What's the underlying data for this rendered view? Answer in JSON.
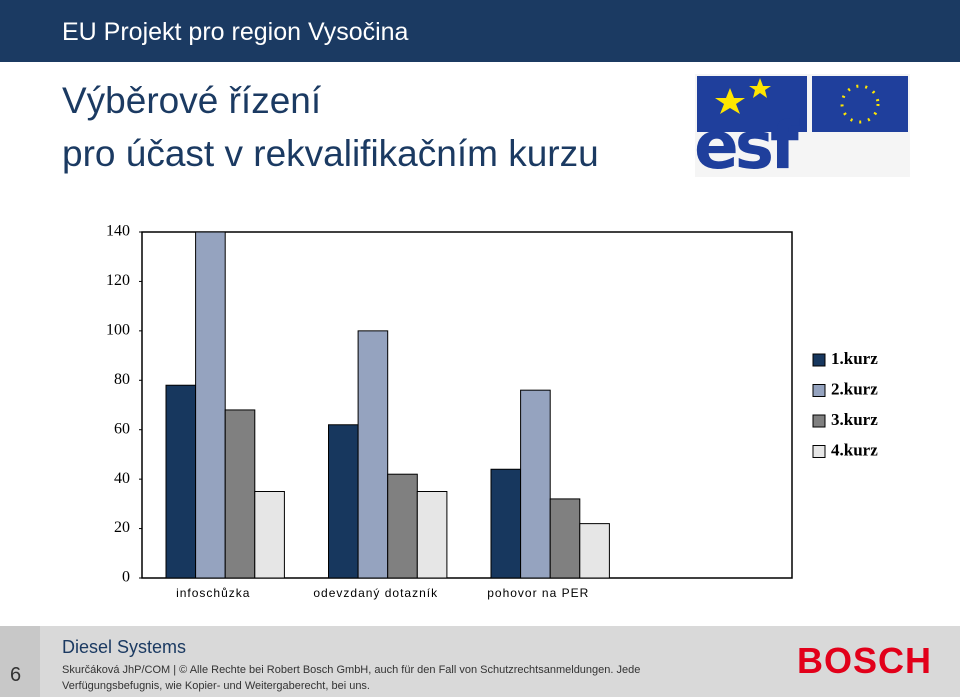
{
  "header": {
    "title": "EU Projekt pro region Vysočina",
    "heading": [
      "Výběrové řízení",
      "pro účast v rekvalifikačním kurzu"
    ],
    "logo_text": "esf"
  },
  "chart_data": {
    "type": "bar",
    "categories": [
      "infoschůzka",
      "odevzdaný dotazník",
      "pohovor na PER",
      null
    ],
    "series": [
      {
        "name": "1.kurz",
        "color": "#17375e",
        "values": [
          78,
          62,
          44,
          null
        ]
      },
      {
        "name": "2.kurz",
        "color": "#95a3bf",
        "values": [
          140,
          100,
          76,
          null
        ]
      },
      {
        "name": "3.kurz",
        "color": "#808080",
        "values": [
          68,
          42,
          32,
          null
        ]
      },
      {
        "name": "4.kurz",
        "color": "#e6e6e6",
        "values": [
          35,
          35,
          22,
          null
        ]
      }
    ],
    "ylim": [
      0,
      140
    ],
    "yticks": [
      0,
      20,
      40,
      60,
      80,
      100,
      120,
      140
    ],
    "grid": false,
    "legend": "right"
  },
  "footer": {
    "division": "Diesel Systems",
    "page": "6",
    "notice": "Skurčáková JhP/COM | © Alle Rechte bei Robert Bosch GmbH, auch für den Fall von Schutzrechtsanmeldungen. Jede Verfügungsbefugnis, wie Kopier- und Weitergaberecht, bei uns.",
    "brand": "BOSCH"
  }
}
